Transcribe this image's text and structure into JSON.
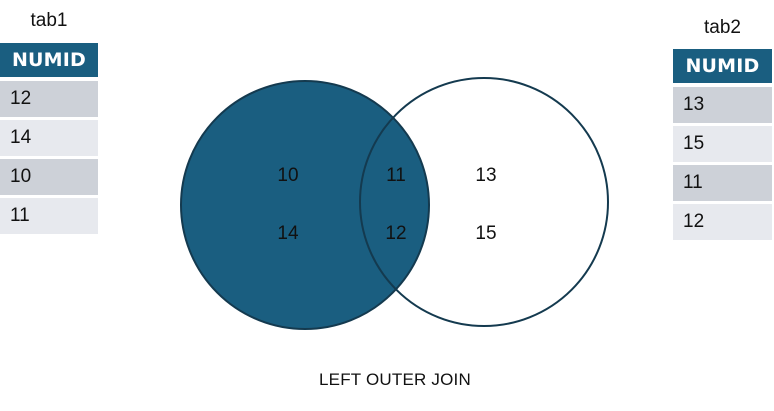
{
  "tab1": {
    "title": "tab1",
    "header": "NUMID",
    "rows": [
      "12",
      "14",
      "10",
      "11"
    ]
  },
  "tab2": {
    "title": "tab2",
    "header": "NUMID",
    "rows": [
      "13",
      "15",
      "11",
      "12"
    ]
  },
  "venn": {
    "left_only": [
      "10",
      "14"
    ],
    "intersection": [
      "11",
      "12"
    ],
    "right_only": [
      "13",
      "15"
    ],
    "highlighted_region": "left circle (including intersection)",
    "fill_color": "#1a5e80",
    "stroke_color": "#143a4f"
  },
  "caption": "LEFT OUTER JOIN"
}
